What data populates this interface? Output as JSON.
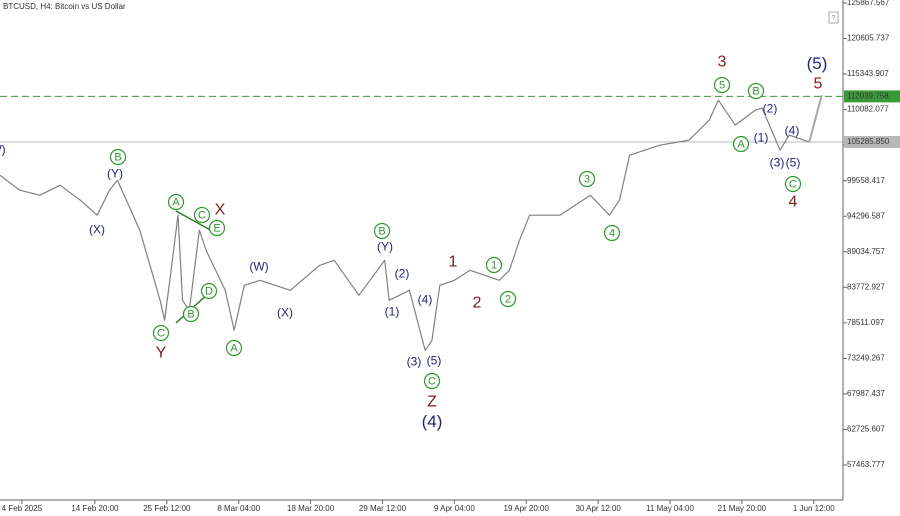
{
  "chart_data": {
    "type": "line",
    "title": "BTCUSD, H4:  Bitcoin vs US Dollar",
    "xlim": [
      "31 Jan 18:00",
      "5 Jun 20:00"
    ],
    "xticks": [
      "4 Feb 2025",
      "14 Feb 20:00",
      "25 Feb 12:00",
      "8 Mar 04:00",
      "18 Mar 20:00",
      "29 Mar 12:00",
      "9 Apr 04:00",
      "19 Apr 20:00",
      "30 Apr 12:00",
      "11 May 04:00",
      "21 May 20:00",
      "1 Jun 12:00"
    ],
    "ylim": [
      52280,
      126312
    ],
    "yticks": [
      125867.567,
      120605.737,
      115343.907,
      110082.077,
      104820.247,
      99558.417,
      94296.587,
      89034.757,
      83772.927,
      78511.097,
      73249.267,
      67987.437,
      62725.607,
      57463.777
    ],
    "series": [
      {
        "color": "#808080",
        "x": [
          "31 Jan 18:00",
          "3 Feb 16:00",
          "6 Feb 16:00",
          "9 Feb 16:00",
          "12 Feb 16:00",
          "15 Feb 04:00",
          "17 Feb 00:00",
          "18 Feb 04:00",
          "21 Feb 12:00",
          "24 Feb 12:00",
          "25 Feb 04:00",
          "26 Feb 08:00",
          "27 Feb 04:00",
          "27 Feb 20:00",
          "28 Feb 20:00",
          "2 Mar 08:00",
          "3 Mar 08:00",
          "6 Mar 04:00",
          "7 Mar 12:00",
          "9 Mar 00:00",
          "11 Mar 08:00",
          "15 Mar 20:00",
          "20 Mar 04:00",
          "22 Mar 08:00",
          "26 Mar 00:00",
          "29 Mar 20:00",
          "30 Mar 12:00",
          "2 Apr 12:00",
          "4 Apr 20:00",
          "5 Apr 20:00",
          "7 Apr 00:00",
          "9 Apr 04:00",
          "11 Apr 12:00",
          "15 Apr 20:00",
          "17 Apr 08:00",
          "18 Apr 20:00",
          "20 Apr 08:00",
          "24 Apr 20:00",
          "29 Apr 08:00",
          "2 May 04:00",
          "3 May 16:00",
          "5 May 04:00",
          "9 May 16:00",
          "14 May 00:00",
          "17 May 00:00",
          "18 May 08:00",
          "20 May 20:00",
          "23 May 20:00",
          "24 May 20:00",
          "27 May 12:00",
          "28 May 20:00",
          "31 May 20:00"
        ],
        "values": [
          100374,
          98150,
          97409,
          98891,
          96668,
          94445,
          98150,
          99632,
          92221,
          81846,
          78882,
          87775,
          94445,
          81846,
          80364,
          92221,
          89257,
          83328,
          77400,
          84069,
          84810,
          83328,
          87034,
          87775,
          82587,
          87775,
          81846,
          83328,
          74435,
          75917,
          84069,
          84810,
          86293,
          84810,
          86293,
          90739,
          94445,
          94445,
          97409,
          94445,
          96668,
          103338,
          104820,
          105561,
          108526,
          111490,
          107784,
          110008,
          110305,
          104079,
          106302,
          105285.85
        ]
      },
      {
        "color": "#a8a8a8",
        "x": [
          "31 May 20:00",
          "2 Jun 16:00"
        ],
        "values": [
          105285.85,
          112230
        ]
      }
    ],
    "levels": [
      {
        "value": 112039.758,
        "label": "112039.758",
        "color": "#3a9a3a",
        "dashed": true
      },
      {
        "value": 105285.85,
        "label": "105285.850",
        "color": "#b8b8b8",
        "dashed": false
      }
    ],
    "annotations": [
      {
        "text": "(W)",
        "color": "#1e1e8c",
        "circled": false
      },
      {
        "text": "B",
        "color": "#2a9a2a",
        "circled": true
      },
      {
        "text": "(Y)",
        "color": "#1e1e8c",
        "circled": false
      },
      {
        "text": "(X)",
        "color": "#1e1e8c",
        "circled": false
      },
      {
        "text": "A",
        "color": "#2a9a2a",
        "circled": true
      },
      {
        "text": "C",
        "color": "#2a9a2a",
        "circled": true
      },
      {
        "text": "X",
        "color": "#8b1a1a",
        "circled": false
      },
      {
        "text": "E",
        "color": "#2a9a2a",
        "circled": true
      },
      {
        "text": "D",
        "color": "#2a9a2a",
        "circled": true
      },
      {
        "text": "B",
        "color": "#2a9a2a",
        "circled": true
      },
      {
        "text": "C",
        "color": "#2a9a2a",
        "circled": true
      },
      {
        "text": "Y",
        "color": "#8b1a1a",
        "circled": false
      },
      {
        "text": "A",
        "color": "#2a9a2a",
        "circled": true
      },
      {
        "text": "(W)",
        "color": "#1e1e8c",
        "circled": false
      },
      {
        "text": "(X)",
        "color": "#1e1e8c",
        "circled": false
      },
      {
        "text": "B",
        "color": "#2a9a2a",
        "circled": true
      },
      {
        "text": "(Y)",
        "color": "#1e1e8c",
        "circled": false
      },
      {
        "text": "(2)",
        "color": "#1e1e8c",
        "circled": false
      },
      {
        "text": "(1)",
        "color": "#1e1e8c",
        "circled": false
      },
      {
        "text": "(4)",
        "color": "#1e1e8c",
        "circled": false
      },
      {
        "text": "(3)",
        "color": "#1e1e8c",
        "circled": false
      },
      {
        "text": "(5)",
        "color": "#1e1e8c",
        "circled": false
      },
      {
        "text": "C",
        "color": "#2a9a2a",
        "circled": true
      },
      {
        "text": "Z",
        "color": "#8b1a1a",
        "circled": false
      },
      {
        "text": "(4)",
        "color": "#1e1e8c",
        "circled": false
      },
      {
        "text": "1",
        "color": "#8b1a1a",
        "circled": false
      },
      {
        "text": "2",
        "color": "#8b1a1a",
        "circled": false
      },
      {
        "text": "1",
        "color": "#2a9a2a",
        "circled": true
      },
      {
        "text": "2",
        "color": "#2a9a2a",
        "circled": true
      },
      {
        "text": "3",
        "color": "#2a9a2a",
        "circled": true
      },
      {
        "text": "4",
        "color": "#2a9a2a",
        "circled": true
      },
      {
        "text": "3",
        "color": "#8b1a1a",
        "circled": false
      },
      {
        "text": "5",
        "color": "#2a9a2a",
        "circled": true
      },
      {
        "text": "B",
        "color": "#2a9a2a",
        "circled": true
      },
      {
        "text": "(2)",
        "color": "#1e1e8c",
        "circled": false
      },
      {
        "text": "(1)",
        "color": "#1e1e8c",
        "circled": false
      },
      {
        "text": "A",
        "color": "#2a9a2a",
        "circled": true
      },
      {
        "text": "(4)",
        "color": "#1e1e8c",
        "circled": false
      },
      {
        "text": "(3)",
        "color": "#1e1e8c",
        "circled": false
      },
      {
        "text": "(5)",
        "color": "#1e1e8c",
        "circled": false
      },
      {
        "text": "C",
        "color": "#2a9a2a",
        "circled": true
      },
      {
        "text": "4",
        "color": "#8b1a1a",
        "circled": false
      },
      {
        "text": "(5)",
        "color": "#1e1e8c",
        "circled": false
      },
      {
        "text": "5",
        "color": "#8b1a1a",
        "circled": false
      }
    ]
  }
}
